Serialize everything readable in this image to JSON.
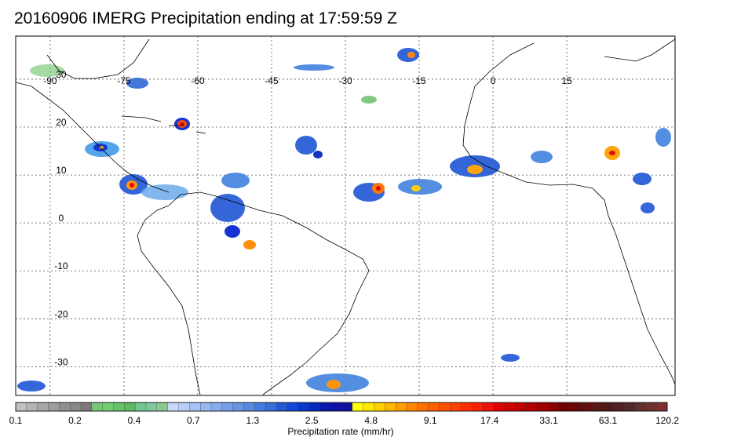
{
  "title": "20160906 IMERG Precipitation ending at 17:59:59 Z",
  "map": {
    "lon_range": [
      -97,
      37
    ],
    "lat_range": [
      -36,
      39
    ],
    "lon_labels": [
      "-90",
      "-75",
      "-60",
      "-45",
      "-30",
      "-15",
      "0",
      "15"
    ],
    "lon_values": [
      -90,
      -75,
      -60,
      -45,
      -30,
      -15,
      0,
      15
    ],
    "lat_labels": [
      "30",
      "20",
      "10",
      "0",
      "-10",
      "-20",
      "-30"
    ],
    "lat_values": [
      30,
      20,
      10,
      0,
      -10,
      -20,
      -30
    ],
    "gridlines": "dotted",
    "coastline_color": "#000000"
  },
  "colorbar": {
    "colors": [
      "#c0c0c0",
      "#b4b4b4",
      "#a8a8a8",
      "#9c9c9c",
      "#909090",
      "#888888",
      "#7c7c7c",
      "#78c878",
      "#70d070",
      "#68c468",
      "#60b860",
      "#70c890",
      "#80c8a0",
      "#90c890",
      "#c8d8f8",
      "#b8d0f8",
      "#a8c4f4",
      "#98b8f0",
      "#88acec",
      "#78a0e8",
      "#6894e4",
      "#5888e0",
      "#487cdc",
      "#3870d8",
      "#2058d8",
      "#1048d8",
      "#0838d0",
      "#0828c0",
      "#0818b0",
      "#1010a8",
      "#101098",
      "#ffff00",
      "#ffe800",
      "#ffd000",
      "#ffb800",
      "#ffa000",
      "#ff8800",
      "#ff7000",
      "#ff6000",
      "#ff5000",
      "#ff4000",
      "#ff3000",
      "#ff2000",
      "#f01010",
      "#e00000",
      "#d00000",
      "#c00000",
      "#b00000",
      "#a00000",
      "#900000",
      "#700000",
      "#680808",
      "#601010",
      "#581818",
      "#501818",
      "#502020",
      "#502828",
      "#603030",
      "#703030",
      "#803030"
    ],
    "tick_labels": [
      "0.1",
      "0.2",
      "0.4",
      "0.7",
      "1.3",
      "2.5",
      "4.8",
      "9.1",
      "17.4",
      "33.1",
      "63.1",
      "120.2"
    ],
    "title": "Precipitation rate (mm/hr)"
  }
}
